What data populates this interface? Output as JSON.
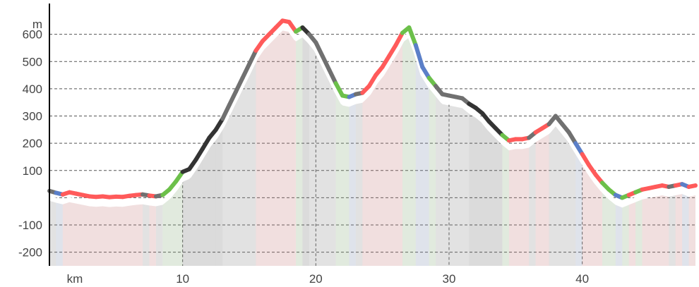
{
  "chart_data": {
    "type": "area",
    "title": "",
    "xlabel": "km",
    "ylabel": "m",
    "x_unit_label": "km",
    "y_unit_label": "m",
    "xlim": [
      0,
      48.5
    ],
    "ylim": [
      -250,
      700
    ],
    "x_ticks": [
      10,
      20,
      30,
      40
    ],
    "x_tick_labels": [
      "10",
      "20",
      "30",
      "40"
    ],
    "y_ticks": [
      -200,
      -100,
      100,
      200,
      300,
      400,
      500,
      600
    ],
    "y_tick_labels": [
      "-200",
      "-100",
      "100",
      "200",
      "300",
      "400",
      "500",
      "600"
    ],
    "horizontal_grid": "dashed",
    "vertical_grid": "dashed",
    "legend": "none",
    "grade_colors": {
      "descent": "#5b7fc8",
      "flat": "#707070",
      "moderate": "#6cc04a",
      "steep": "#ff5a5a",
      "very_steep": "#333333"
    },
    "series": [
      {
        "x": [
          0,
          0.5,
          1,
          1.5,
          2,
          2.5,
          3,
          3.5,
          4,
          4.5,
          5,
          5.5,
          6,
          6.5,
          7,
          7.5,
          8,
          8.5,
          9,
          9.5,
          10,
          10.5,
          11,
          11.5,
          12,
          12.5,
          13,
          13.5,
          14,
          14.5,
          15,
          15.5,
          16,
          16.5,
          17,
          17.5,
          18,
          18.5,
          19,
          19.5,
          20,
          20.5,
          21,
          21.5,
          22,
          22.5,
          23,
          23.5,
          24,
          24.5,
          25,
          25.5,
          26,
          26.5,
          27,
          27.5,
          28,
          28.5,
          29,
          29.5,
          30,
          30.5,
          31,
          31.5,
          32,
          32.5,
          33,
          33.5,
          34,
          34.5,
          35,
          35.5,
          36,
          36.5,
          37,
          37.5,
          38,
          38.5,
          39,
          39.5,
          40,
          40.5,
          41,
          41.5,
          42,
          42.5,
          43,
          43.5,
          44,
          44.5,
          45,
          45.5,
          46,
          46.5,
          47,
          47.5,
          48,
          48.5
        ],
        "values": [
          25,
          18,
          12,
          20,
          15,
          10,
          5,
          3,
          5,
          2,
          4,
          3,
          7,
          10,
          12,
          8,
          5,
          10,
          30,
          60,
          95,
          105,
          140,
          180,
          220,
          250,
          290,
          340,
          390,
          440,
          490,
          540,
          575,
          600,
          625,
          650,
          645,
          610,
          625,
          600,
          570,
          520,
          470,
          420,
          375,
          370,
          380,
          385,
          410,
          450,
          480,
          520,
          560,
          605,
          625,
          560,
          480,
          440,
          410,
          380,
          375,
          370,
          365,
          345,
          330,
          310,
          280,
          255,
          230,
          210,
          215,
          215,
          220,
          240,
          255,
          270,
          300,
          270,
          240,
          200,
          160,
          120,
          85,
          55,
          30,
          10,
          0,
          10,
          20,
          30,
          35,
          40,
          45,
          40,
          45,
          50,
          40,
          45
        ],
        "segment_grades": [
          "flat",
          "descent",
          "steep",
          "steep",
          "steep",
          "steep",
          "steep",
          "steep",
          "steep",
          "steep",
          "steep",
          "steep",
          "steep",
          "steep",
          "flat",
          "steep",
          "flat",
          "moderate",
          "moderate",
          "moderate",
          "very_steep",
          "very_steep",
          "very_steep",
          "very_steep",
          "very_steep",
          "very_steep",
          "flat",
          "flat",
          "flat",
          "flat",
          "flat",
          "steep",
          "steep",
          "steep",
          "steep",
          "steep",
          "steep",
          "moderate",
          "very_steep",
          "flat",
          "flat",
          "flat",
          "flat",
          "moderate",
          "moderate",
          "descent",
          "flat",
          "steep",
          "steep",
          "steep",
          "steep",
          "steep",
          "steep",
          "moderate",
          "moderate",
          "descent",
          "descent",
          "moderate",
          "flat",
          "flat",
          "flat",
          "flat",
          "flat",
          "very_steep",
          "very_steep",
          "very_steep",
          "very_steep",
          "very_steep",
          "moderate",
          "steep",
          "steep",
          "steep",
          "flat",
          "steep",
          "steep",
          "flat",
          "flat",
          "flat",
          "flat",
          "descent",
          "steep",
          "steep",
          "steep",
          "moderate",
          "moderate",
          "descent",
          "moderate",
          "steep",
          "moderate",
          "steep",
          "steep",
          "steep",
          "steep",
          "flat",
          "steep",
          "descent",
          "steep"
        ]
      }
    ]
  }
}
